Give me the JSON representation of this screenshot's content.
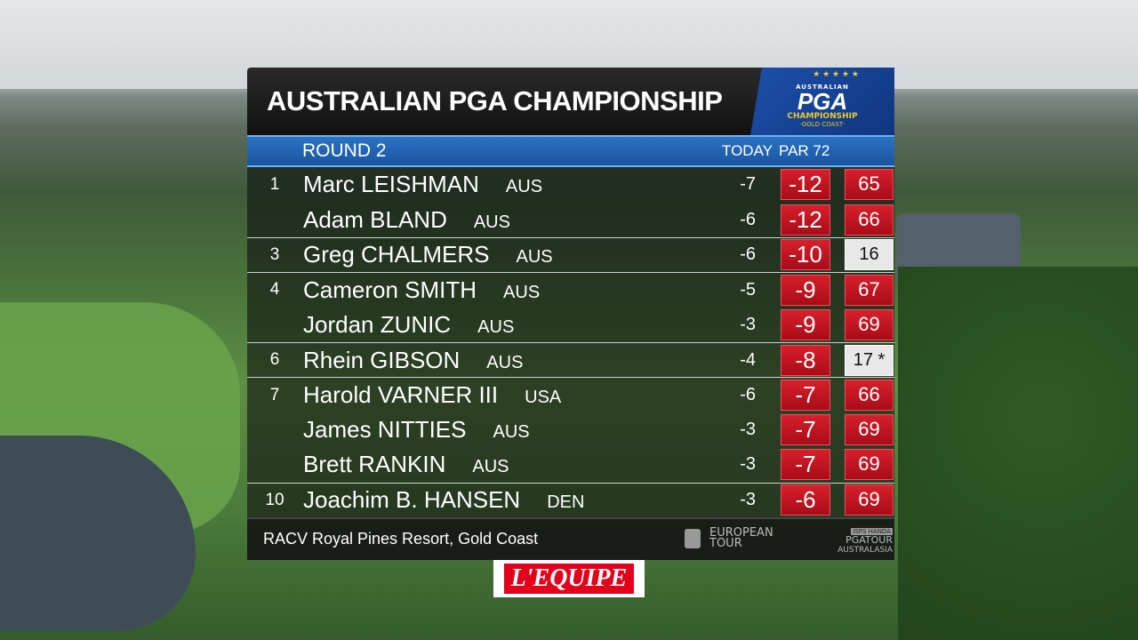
{
  "header": {
    "title": "AUSTRALIAN PGA CHAMPIONSHIP",
    "logo": {
      "top": "AUSTRALIAN",
      "main": "PGA",
      "sub": "CHAMPIONSHIP",
      "place": "·GOLD COAST·"
    }
  },
  "round_bar": {
    "round": "ROUND 2",
    "today_label": "TODAY",
    "par_label": "PAR 72"
  },
  "rows": [
    {
      "pos": "1",
      "name": "Marc LEISHMAN",
      "country": "AUS",
      "today": "-7",
      "total": "-12",
      "score": "65",
      "sep": false,
      "thru": false
    },
    {
      "pos": "",
      "name": "Adam BLAND",
      "country": "AUS",
      "today": "-6",
      "total": "-12",
      "score": "66",
      "sep": false,
      "thru": false
    },
    {
      "pos": "3",
      "name": "Greg CHALMERS",
      "country": "AUS",
      "today": "-6",
      "total": "-10",
      "score": "16",
      "sep": true,
      "thru": true
    },
    {
      "pos": "4",
      "name": "Cameron SMITH",
      "country": "AUS",
      "today": "-5",
      "total": "-9",
      "score": "67",
      "sep": true,
      "thru": false
    },
    {
      "pos": "",
      "name": "Jordan ZUNIC",
      "country": "AUS",
      "today": "-3",
      "total": "-9",
      "score": "69",
      "sep": false,
      "thru": false
    },
    {
      "pos": "6",
      "name": "Rhein GIBSON",
      "country": "AUS",
      "today": "-4",
      "total": "-8",
      "score": "17 *",
      "sep": true,
      "thru": true
    },
    {
      "pos": "7",
      "name": "Harold VARNER III",
      "country": "USA",
      "today": "-6",
      "total": "-7",
      "score": "66",
      "sep": true,
      "thru": false
    },
    {
      "pos": "",
      "name": "James NITTIES",
      "country": "AUS",
      "today": "-3",
      "total": "-7",
      "score": "69",
      "sep": false,
      "thru": false
    },
    {
      "pos": "",
      "name": "Brett RANKIN",
      "country": "AUS",
      "today": "-3",
      "total": "-7",
      "score": "69",
      "sep": false,
      "thru": false
    },
    {
      "pos": "10",
      "name": "Joachim B. HANSEN",
      "country": "DEN",
      "today": "-3",
      "total": "-6",
      "score": "69",
      "sep": true,
      "thru": false
    }
  ],
  "footer": {
    "venue": "RACV Royal Pines Resort, Gold Coast",
    "sponsor1_line1": "EUROPEAN",
    "sponsor1_line2": "TOUR",
    "sponsor2_top": "ISPS HANDA",
    "sponsor2_main": "PGATOUR",
    "sponsor2_sub": "AUSTRALASIA"
  },
  "broadcaster": "L'EQUIPE",
  "colors": {
    "score_red": "#c41424",
    "round_blue": "#1f62b2",
    "panel_dark": "#141414"
  }
}
